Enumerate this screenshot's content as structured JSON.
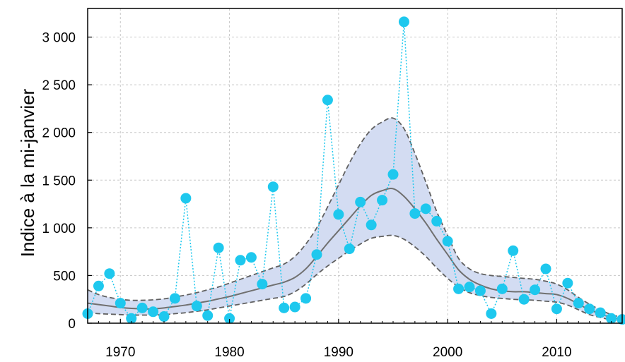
{
  "chart_data": {
    "type": "line",
    "title": "",
    "xlabel": "",
    "ylabel": "Indice à la mi-janvier",
    "xlim": [
      1967,
      2016
    ],
    "ylim": [
      0,
      3300
    ],
    "grid": true,
    "xticks": [
      1970,
      1980,
      1990,
      2000,
      2010
    ],
    "xtick_labels": [
      "1970",
      "1980",
      "1990",
      "2000",
      "2010"
    ],
    "yticks": [
      0,
      500,
      1000,
      1500,
      2000,
      2500,
      3000
    ],
    "ytick_labels": [
      "0",
      "500",
      "1 000",
      "1 500",
      "2 000",
      "2 500",
      "3 000"
    ],
    "colors": {
      "points": "#1ec8ee",
      "trend": "#707070",
      "band_fill": "#d3dcf2",
      "band_edge": "#606060",
      "grid": "#c8c8c8"
    },
    "series": [
      {
        "kind": "observed",
        "style": "dotted-line-with-markers",
        "x": [
          1967,
          1968,
          1969,
          1970,
          1971,
          1972,
          1973,
          1974,
          1975,
          1976,
          1977,
          1978,
          1979,
          1980,
          1981,
          1982,
          1983,
          1984,
          1985,
          1986,
          1987,
          1988,
          1989,
          1990,
          1991,
          1992,
          1993,
          1994,
          1995,
          1996,
          1997,
          1998,
          1999,
          2000,
          2001,
          2002,
          2003,
          2004,
          2005,
          2006,
          2007,
          2008,
          2009,
          2010,
          2011,
          2012,
          2013,
          2014,
          2015,
          2016
        ],
        "y": [
          100,
          390,
          520,
          210,
          50,
          160,
          120,
          70,
          260,
          1310,
          180,
          80,
          790,
          50,
          660,
          690,
          410,
          1430,
          160,
          170,
          260,
          720,
          2340,
          1140,
          780,
          1270,
          1030,
          1290,
          1560,
          3160,
          1150,
          1200,
          1070,
          860,
          360,
          380,
          340,
          100,
          360,
          760,
          250,
          350,
          570,
          150,
          420,
          210,
          150,
          110,
          50,
          40
        ]
      },
      {
        "kind": "trend",
        "style": "solid",
        "x": [
          1967,
          1968,
          1969,
          1970,
          1971,
          1972,
          1973,
          1974,
          1975,
          1976,
          1977,
          1978,
          1979,
          1980,
          1981,
          1982,
          1983,
          1984,
          1985,
          1986,
          1987,
          1988,
          1989,
          1990,
          1991,
          1992,
          1993,
          1994,
          1995,
          1996,
          1997,
          1998,
          1999,
          2000,
          2001,
          2002,
          2003,
          2004,
          2005,
          2006,
          2007,
          2008,
          2009,
          2010,
          2011,
          2012,
          2013,
          2014,
          2015,
          2016
        ],
        "y": [
          210,
          195,
          180,
          165,
          155,
          150,
          150,
          160,
          175,
          190,
          210,
          230,
          255,
          280,
          310,
          340,
          370,
          400,
          430,
          480,
          570,
          700,
          840,
          970,
          1100,
          1230,
          1340,
          1390,
          1410,
          1330,
          1200,
          1050,
          880,
          720,
          560,
          460,
          400,
          360,
          340,
          330,
          330,
          320,
          310,
          300,
          260,
          200,
          140,
          100,
          60,
          40
        ]
      },
      {
        "kind": "band-upper",
        "style": "dashed",
        "x": [
          1967,
          1968,
          1969,
          1970,
          1971,
          1972,
          1973,
          1974,
          1975,
          1976,
          1977,
          1978,
          1979,
          1980,
          1981,
          1982,
          1983,
          1984,
          1985,
          1986,
          1987,
          1988,
          1989,
          1990,
          1991,
          1992,
          1993,
          1994,
          1995,
          1996,
          1997,
          1998,
          1999,
          2000,
          2001,
          2002,
          2003,
          2004,
          2005,
          2006,
          2007,
          2008,
          2009,
          2010,
          2011,
          2012,
          2013,
          2014,
          2015,
          2016
        ],
        "y": [
          350,
          300,
          270,
          250,
          240,
          240,
          245,
          255,
          275,
          295,
          320,
          350,
          380,
          420,
          460,
          500,
          540,
          580,
          620,
          700,
          830,
          1000,
          1220,
          1450,
          1680,
          1880,
          2030,
          2110,
          2150,
          2040,
          1780,
          1480,
          1170,
          920,
          680,
          570,
          520,
          500,
          490,
          480,
          470,
          460,
          440,
          410,
          350,
          270,
          200,
          140,
          90,
          60
        ]
      },
      {
        "kind": "band-lower",
        "style": "dashed",
        "x": [
          1967,
          1968,
          1969,
          1970,
          1971,
          1972,
          1973,
          1974,
          1975,
          1976,
          1977,
          1978,
          1979,
          1980,
          1981,
          1982,
          1983,
          1984,
          1985,
          1986,
          1987,
          1988,
          1989,
          1990,
          1991,
          1992,
          1993,
          1994,
          1995,
          1996,
          1997,
          1998,
          1999,
          2000,
          2001,
          2002,
          2003,
          2004,
          2005,
          2006,
          2007,
          2008,
          2009,
          2010,
          2011,
          2012,
          2013,
          2014,
          2015,
          2016
        ],
        "y": [
          110,
          100,
          95,
          90,
          85,
          85,
          85,
          90,
          100,
          110,
          125,
          140,
          160,
          180,
          200,
          220,
          240,
          260,
          280,
          330,
          410,
          510,
          600,
          680,
          760,
          830,
          890,
          910,
          920,
          880,
          800,
          700,
          580,
          470,
          380,
          320,
          290,
          270,
          260,
          250,
          245,
          240,
          230,
          220,
          190,
          140,
          90,
          60,
          35,
          20
        ]
      }
    ]
  }
}
